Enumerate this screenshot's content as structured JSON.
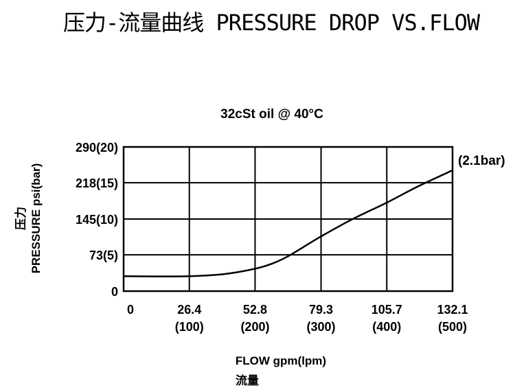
{
  "page": {
    "title": "压力-流量曲线 PRESSURE DROP VS.FLOW"
  },
  "chart_data": {
    "type": "line",
    "title": "32cSt oil @ 40°C",
    "xlabel": "FLOW gpm(lpm)",
    "xlabel_cn": "流量",
    "ylabel": "PRESSURE psi(bar)",
    "ylabel_cn": "压力",
    "x_ticks": [
      {
        "value": 0,
        "label": "0",
        "sublabel": ""
      },
      {
        "value": 26.4,
        "label": "26.4",
        "sublabel": "(100)"
      },
      {
        "value": 52.8,
        "label": "52.8",
        "sublabel": "(200)"
      },
      {
        "value": 79.3,
        "label": "79.3",
        "sublabel": "(300)"
      },
      {
        "value": 105.7,
        "label": "105.7",
        "sublabel": "(400)"
      },
      {
        "value": 132.1,
        "label": "132.1",
        "sublabel": "(500)"
      }
    ],
    "y_ticks": [
      {
        "value": 0,
        "label": "0"
      },
      {
        "value": 73,
        "label": "73(5)"
      },
      {
        "value": 145,
        "label": "145(10)"
      },
      {
        "value": 218,
        "label": "218(15)"
      },
      {
        "value": 290,
        "label": "290(20)"
      }
    ],
    "xlim": [
      0,
      132.1
    ],
    "ylim": [
      0,
      290
    ],
    "grid": true,
    "annotation": "(2.1bar)",
    "series": [
      {
        "x": [
          0,
          13,
          26.4,
          40,
          52.8,
          60,
          66,
          72,
          79.3,
          92,
          105.7,
          118,
          132.1,
          139
        ],
        "y": [
          30,
          29.5,
          30,
          34,
          45,
          56,
          70,
          88,
          110,
          145,
          178,
          210,
          243,
          262
        ]
      }
    ]
  }
}
